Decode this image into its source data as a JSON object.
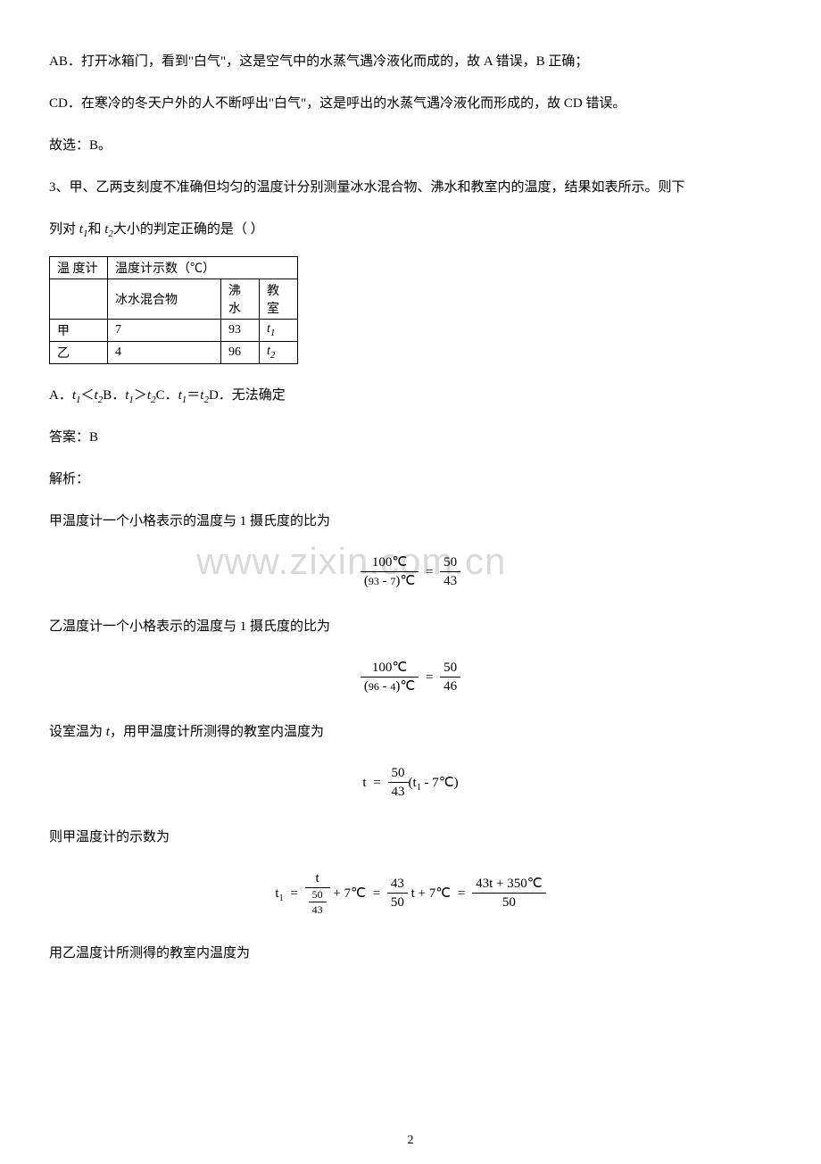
{
  "paragraphs": {
    "p1": "AB．打开冰箱门，看到\"白气\"，这是空气中的水蒸气遇冷液化而成的，故 A 错误，B 正确；",
    "p2": "CD．在寒冷的冬天户外的人不断呼出\"白气\"，这是呼出的水蒸气遇冷液化而形成的，故 CD 错误。",
    "p3": "故选：B。",
    "q3_stem_a": "3、甲、乙两支刻度不准确但均匀的温度计分别测量冰水混合物、沸水和教室内的温度，结果如表所示。则下",
    "q3_stem_b_pre": "列对 ",
    "q3_stem_b_mid": "和 ",
    "q3_stem_b_post": "大小的判定正确的是（   ）",
    "options_pre": "A．",
    "options_a": "＜",
    "options_b_pre": "B．",
    "options_b": "＞",
    "options_c_pre": "C．",
    "options_c": "＝",
    "options_d_pre": "D．",
    "options_d": "无法确定",
    "answer": "答案：B",
    "analysis": "解析：",
    "p_jia": "甲温度计一个小格表示的温度与 1 摄氏度的比为",
    "p_yi": "乙温度计一个小格表示的温度与 1 摄氏度的比为",
    "p_room_pre": "设室温为 ",
    "p_room_post": "，用甲温度计所测得的教室内温度为",
    "p_jiashow": "则甲温度计的示数为",
    "p_yimeasure": "用乙温度计所测得的教室内温度为"
  },
  "symbols": {
    "t": "t",
    "t1": "t",
    "t1_sub": "1",
    "t2": "t",
    "t2_sub": "2"
  },
  "table": {
    "h1": "温 度计",
    "h2": "温度计示数（℃）",
    "r1c1": "",
    "r1c2": "冰水混合物",
    "r1c3": "沸水",
    "r1c4": "教室",
    "r2c1": "甲",
    "r2c2": "7",
    "r2c3": "93",
    "r2c4_sym": "t",
    "r2c4_sub": "1",
    "r3c1": "乙",
    "r3c2": "4",
    "r3c3": "96",
    "r3c4_sym": "t",
    "r3c4_sub": "2"
  },
  "formulas": {
    "f1": {
      "num1": "100℃",
      "den1_a": "93",
      "den1_b": "7",
      "den1_unit": "℃",
      "num2": "50",
      "den2": "43"
    },
    "f2": {
      "num1": "100℃",
      "den1_a": "96",
      "den1_b": "4",
      "den1_unit": "℃",
      "num2": "50",
      "den2": "46"
    },
    "f3": {
      "lhs": "t",
      "num": "50",
      "den": "43",
      "rhs_a": "t",
      "rhs_a_sub": "1",
      "rhs_b": "7℃"
    },
    "f4": {
      "lhs": "t",
      "lhs_sub": "1",
      "nfrac_num": "t",
      "nfrac_den_num": "50",
      "nfrac_den_den": "43",
      "plus1": "7℃",
      "mid_num": "43",
      "mid_den": "50",
      "mid_t": "t",
      "mid_plus": "7℃",
      "last_num": "43t + 350℃",
      "last_den": "50"
    }
  },
  "watermark": "www.zixin.com.cn",
  "page_number": "2"
}
